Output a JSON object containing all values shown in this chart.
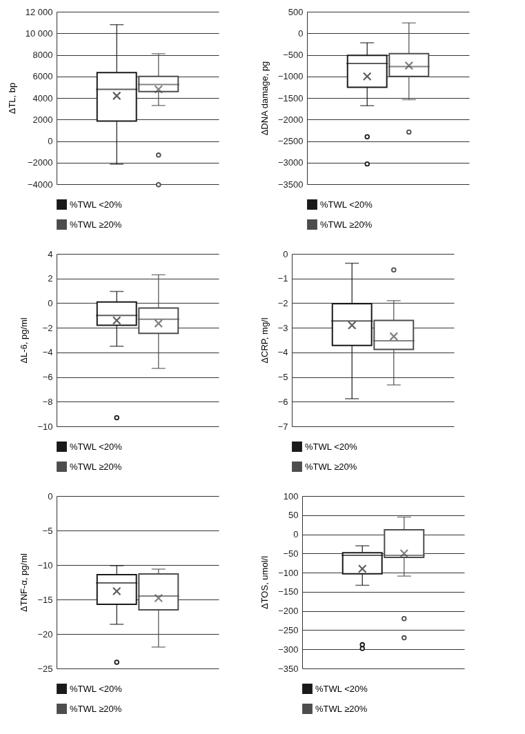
{
  "chart_data": [
    {
      "type": "box",
      "ylabel": "ΔTL, bp",
      "categories": [
        null
      ],
      "ylim": [
        -4000,
        12000
      ],
      "yticks": [
        {
          "value": -4000,
          "label": "−4000"
        },
        {
          "value": -2000,
          "label": "−2000"
        },
        0,
        2000,
        4000,
        6000,
        8000,
        {
          "value": 10000,
          "label": "10 000"
        },
        {
          "value": 12000,
          "label": "12 000"
        }
      ],
      "grid": "y",
      "legend": "bottom",
      "tick_labels": "y",
      "series": [
        {
          "name": "%TWL <20%",
          "color": "#1a1a1a",
          "boxes": [
            {
              "low": -2150,
              "q1": 1850,
              "median": 4800,
              "q3": 6350,
              "high": 10800,
              "mean": 4200
            }
          ]
        },
        {
          "name": "%TWL ≥20%",
          "color": "#4d4d4d",
          "boxes": [
            {
              "low": 3300,
              "q1": 4600,
              "median": 5250,
              "q3": 6000,
              "high": 8100,
              "mean": 4800,
              "outliers": [
                -1300,
                -4050
              ]
            }
          ]
        }
      ]
    },
    {
      "type": "box",
      "ylabel": "ΔDNA damage, pg",
      "categories": [
        null
      ],
      "ylim": [
        -3500,
        500
      ],
      "yticks": [
        {
          "value": -3500,
          "label": "−3500"
        },
        {
          "value": -3000,
          "label": "−3000"
        },
        {
          "value": -2500,
          "label": "−2500"
        },
        {
          "value": -2000,
          "label": "−2000"
        },
        {
          "value": -1500,
          "label": "−1500"
        },
        {
          "value": -1000,
          "label": "−1000"
        },
        {
          "value": -500,
          "label": "−500"
        },
        0,
        500
      ],
      "grid": "y",
      "legend": "bottom",
      "tick_labels": "y",
      "series": [
        {
          "name": "%TWL <20%",
          "color": "#1a1a1a",
          "boxes": [
            {
              "low": -1680,
              "q1": -1250,
              "median": -700,
              "q3": -510,
              "high": -220,
              "mean": -1000,
              "outliers": [
                -2400,
                -3030
              ]
            }
          ]
        },
        {
          "name": "%TWL ≥20%",
          "color": "#4d4d4d",
          "boxes": [
            {
              "low": -1540,
              "q1": -1000,
              "median": -770,
              "q3": -470,
              "high": 240,
              "mean": -750,
              "outliers": [
                -2290
              ]
            }
          ]
        }
      ]
    },
    {
      "type": "box",
      "ylabel": "ΔL-6, pg/ml",
      "categories": [
        null
      ],
      "ylim": [
        -10,
        4
      ],
      "yticks": [
        {
          "value": -10,
          "label": "−10"
        },
        {
          "value": -8,
          "label": "−8"
        },
        {
          "value": -6,
          "label": "−6"
        },
        {
          "value": -4,
          "label": "−4"
        },
        {
          "value": -2,
          "label": "−2"
        },
        0,
        2,
        4
      ],
      "grid": "y",
      "legend": "bottom",
      "tick_labels": "y",
      "series": [
        {
          "name": "%TWL <20%",
          "color": "#1a1a1a",
          "boxes": [
            {
              "low": -3.5,
              "q1": -1.8,
              "median": -1.0,
              "q3": 0.1,
              "high": 0.95,
              "mean": -1.4,
              "outliers": [
                -9.3
              ]
            }
          ]
        },
        {
          "name": "%TWL ≥20%",
          "color": "#4d4d4d",
          "boxes": [
            {
              "low": -5.3,
              "q1": -2.45,
              "median": -1.3,
              "q3": -0.4,
              "high": 2.3,
              "mean": -1.65
            }
          ]
        }
      ]
    },
    {
      "type": "box",
      "ylabel": "ΔCRP, mg/l",
      "categories": [
        null
      ],
      "ylim": [
        -7,
        0
      ],
      "yticks": [
        {
          "value": -7,
          "label": "−7"
        },
        {
          "value": -6,
          "label": "−6"
        },
        {
          "value": -5,
          "label": "−5"
        },
        {
          "value": -4,
          "label": "−4"
        },
        {
          "value": -3,
          "label": "−3"
        },
        {
          "value": -2,
          "label": "−2"
        },
        {
          "value": -1,
          "label": "−1"
        },
        0
      ],
      "grid": "y",
      "legend": "bottom",
      "tick_labels": "y",
      "series": [
        {
          "name": "%TWL <20%",
          "color": "#1a1a1a",
          "boxes": [
            {
              "low": -5.88,
              "q1": -3.72,
              "median": -2.72,
              "q3": -2.02,
              "high": -0.38,
              "mean": -2.9
            }
          ]
        },
        {
          "name": "%TWL ≥20%",
          "color": "#4d4d4d",
          "boxes": [
            {
              "low": -5.32,
              "q1": -3.88,
              "median": -3.53,
              "q3": -2.7,
              "high": -1.9,
              "mean": -3.35,
              "outliers": [
                -0.65
              ]
            }
          ]
        }
      ]
    },
    {
      "type": "box",
      "ylabel": "ΔTNF-α, pg/ml",
      "categories": [
        null
      ],
      "ylim": [
        -25,
        0
      ],
      "yticks": [
        {
          "value": -25,
          "label": "−25"
        },
        {
          "value": -20,
          "label": "−20"
        },
        {
          "value": -15,
          "label": "−15"
        },
        {
          "value": -10,
          "label": "−10"
        },
        {
          "value": -5,
          "label": "−5"
        },
        0
      ],
      "grid": "y",
      "legend": "bottom",
      "tick_labels": "y",
      "series": [
        {
          "name": "%TWL <20%",
          "color": "#1a1a1a",
          "boxes": [
            {
              "low": -18.6,
              "q1": -15.7,
              "median": -12.6,
              "q3": -11.4,
              "high": -10.1,
              "mean": -13.8,
              "outliers": [
                -24.1
              ]
            }
          ]
        },
        {
          "name": "%TWL ≥20%",
          "color": "#4d4d4d",
          "boxes": [
            {
              "low": -21.9,
              "q1": -16.5,
              "median": -14.5,
              "q3": -11.3,
              "high": -10.6,
              "mean": -14.8
            }
          ]
        }
      ]
    },
    {
      "type": "box",
      "ylabel": "ΔTOS, umol/l",
      "categories": [
        null
      ],
      "ylim": [
        -350,
        100
      ],
      "yticks": [
        {
          "value": -350,
          "label": "−350"
        },
        {
          "value": -300,
          "label": "−300"
        },
        {
          "value": -250,
          "label": "−250"
        },
        {
          "value": -200,
          "label": "−200"
        },
        {
          "value": -150,
          "label": "−150"
        },
        {
          "value": -100,
          "label": "−100"
        },
        {
          "value": -50,
          "label": "−50"
        },
        0,
        50,
        100
      ],
      "grid": "y",
      "legend": "bottom",
      "tick_labels": "y",
      "series": [
        {
          "name": "%TWL <20%",
          "color": "#1a1a1a",
          "boxes": [
            {
              "low": -133,
              "q1": -103,
              "median": -55,
              "q3": -48,
              "high": -30,
              "mean": -90,
              "outliers": [
                -288,
                -298
              ]
            }
          ]
        },
        {
          "name": "%TWL ≥20%",
          "color": "#4d4d4d",
          "boxes": [
            {
              "low": -109,
              "q1": -60,
              "median": -55,
              "q3": 12,
              "high": 45,
              "mean": -50,
              "outliers": [
                -220,
                -270
              ]
            }
          ]
        }
      ]
    }
  ]
}
